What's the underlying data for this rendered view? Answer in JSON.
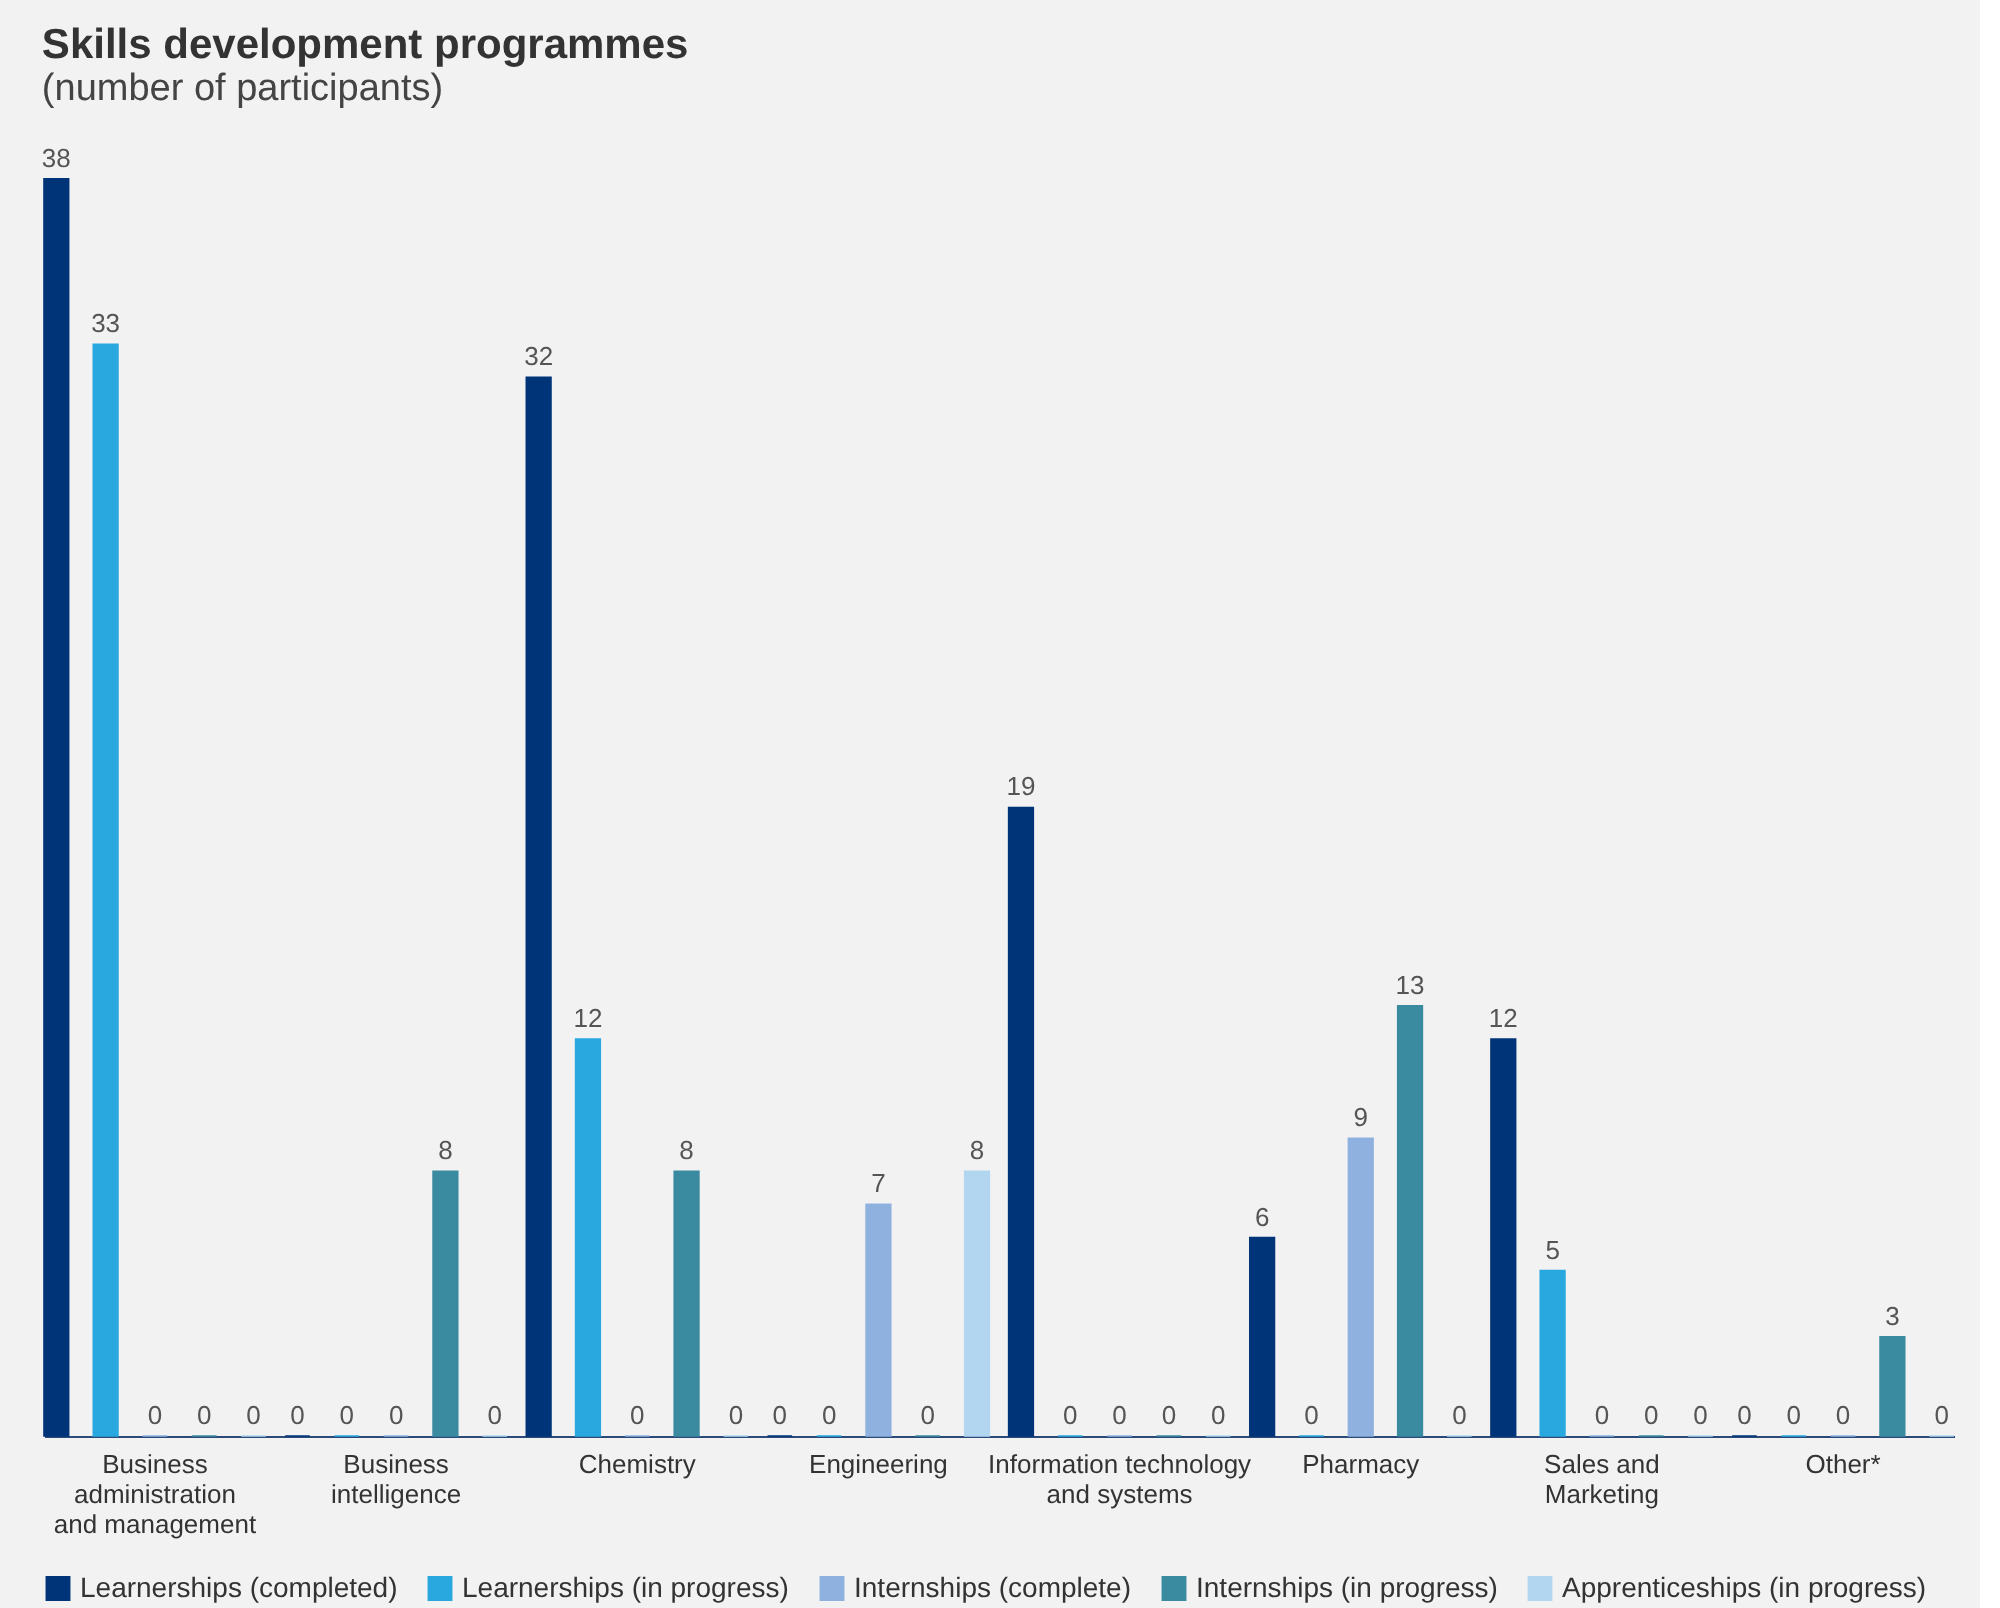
{
  "chart_data": {
    "type": "bar",
    "title": "Skills development programmes",
    "subtitle": "(number of participants)",
    "categories": [
      "Business\nadministration\nand management",
      "Business\nintelligence",
      "Chemistry",
      "Engineering",
      "Information technology\nand systems",
      "Pharmacy",
      "Sales and\nMarketing",
      "Other*"
    ],
    "series": [
      {
        "name": "Learnerships (completed)",
        "color": "#003478",
        "values": [
          38,
          0,
          32,
          0,
          19,
          6,
          12,
          0
        ]
      },
      {
        "name": "Learnerships (in progress)",
        "color": "#29a8e0",
        "values": [
          33,
          0,
          12,
          0,
          0,
          0,
          5,
          0
        ]
      },
      {
        "name": "Internships (complete)",
        "color": "#8fb1df",
        "values": [
          0,
          0,
          0,
          7,
          0,
          9,
          0,
          0
        ]
      },
      {
        "name": "Internships (in progress)",
        "color": "#3a8aa0",
        "values": [
          0,
          8,
          8,
          0,
          0,
          13,
          0,
          3
        ]
      },
      {
        "name": "Apprenticeships (in progress)",
        "color": "#b3d6f0",
        "values": [
          0,
          0,
          0,
          8,
          0,
          0,
          0,
          0
        ]
      }
    ],
    "data_labels": true,
    "tick_labels": "x",
    "grid": false,
    "legend": "bottom"
  }
}
